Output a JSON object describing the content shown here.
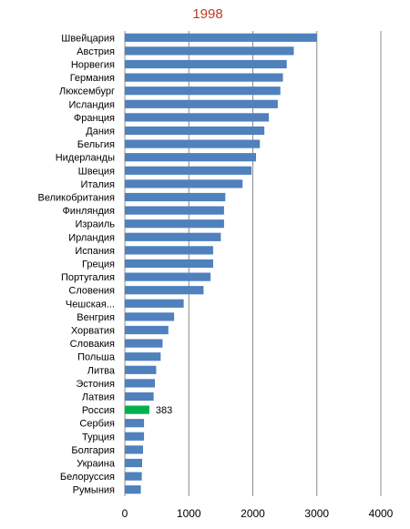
{
  "chart_data": {
    "type": "bar",
    "orientation": "horizontal",
    "title": "1998",
    "xlabel": "",
    "ylabel": "",
    "xlim": [
      0,
      4000
    ],
    "xticks": [
      0,
      1000,
      2000,
      3000,
      4000
    ],
    "grid": "vertical",
    "colors": {
      "bar": "#4f81bd",
      "highlight": "#00b050",
      "title": "#c0392b",
      "grid": "#8c8c8c"
    },
    "categories": [
      "Швейцария",
      "Австрия",
      "Норвегия",
      "Германия",
      "Люксембург",
      "Исландия",
      "Франция",
      "Дания",
      "Бельгия",
      "Нидерланды",
      "Швеция",
      "Италия",
      "Великобритания",
      "Финляндия",
      "Израиль",
      "Ирландия",
      "Испания",
      "Греция",
      "Португалия",
      "Словения",
      "Чешская...",
      "Венгрия",
      "Хорватия",
      "Словакия",
      "Польша",
      "Литва",
      "Эстония",
      "Латвия",
      "Россия",
      "Сербия",
      "Турция",
      "Болгария",
      "Украина",
      "Белоруссия",
      "Румыния"
    ],
    "values": [
      3000,
      2640,
      2530,
      2470,
      2430,
      2390,
      2250,
      2180,
      2110,
      2050,
      1980,
      1840,
      1570,
      1550,
      1550,
      1500,
      1380,
      1380,
      1340,
      1230,
      920,
      770,
      680,
      590,
      560,
      490,
      470,
      450,
      383,
      300,
      300,
      285,
      270,
      265,
      250
    ],
    "highlight_index": 28,
    "data_labels": [
      {
        "category": "Россия",
        "text": "383"
      }
    ]
  }
}
